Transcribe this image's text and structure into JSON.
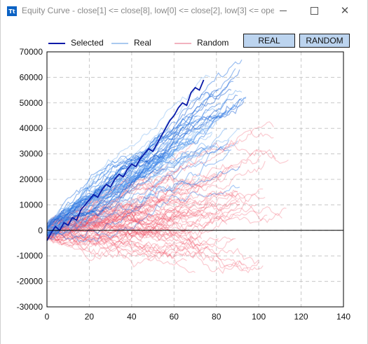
{
  "window": {
    "icon_text": "Tt",
    "title": "Equity Curve - close[1] <= close[8], low[0] <= close[2], low[3] <= ope...",
    "close_glyph": "✕"
  },
  "toolbar": {
    "real_label": "REAL",
    "random_label": "RANDOM"
  },
  "legend": {
    "items": [
      {
        "label": "Selected",
        "color": "#0a1aa8"
      },
      {
        "label": "Real",
        "color": "#a9c9ef"
      },
      {
        "label": "Random",
        "color": "#f2b3bf"
      }
    ]
  },
  "chart_data": {
    "type": "line",
    "title": "",
    "xlabel": "",
    "ylabel": "",
    "xlim": [
      0,
      140
    ],
    "ylim": [
      -30000,
      70000
    ],
    "x_ticks": [
      0,
      20,
      40,
      60,
      80,
      100,
      120,
      140
    ],
    "y_ticks": [
      -30000,
      -20000,
      -10000,
      0,
      10000,
      20000,
      30000,
      40000,
      50000,
      60000,
      70000
    ],
    "grid": true,
    "legend_position": "top-left",
    "colors": {
      "selected": "#0a1aa8",
      "real": "#1f6fe0",
      "random": "#f0485e",
      "zero_line": "#000000"
    },
    "series": [
      {
        "name": "Selected",
        "x": [
          0,
          2,
          4,
          6,
          8,
          10,
          12,
          14,
          16,
          18,
          20,
          22,
          24,
          26,
          28,
          30,
          32,
          34,
          36,
          38,
          40,
          42,
          44,
          46,
          48,
          50,
          52,
          54,
          56,
          58,
          60,
          62,
          64,
          66,
          68,
          70,
          72,
          74
        ],
        "values": [
          -4000,
          -1000,
          1500,
          0,
          3000,
          2000,
          5000,
          4000,
          8000,
          10000,
          12000,
          14000,
          13000,
          16000,
          18000,
          17000,
          20000,
          22000,
          21000,
          24000,
          26000,
          25000,
          28000,
          30000,
          32000,
          31000,
          34000,
          37000,
          40000,
          43000,
          45000,
          48000,
          50000,
          49000,
          54000,
          56000,
          55000,
          59000
        ]
      },
      {
        "name": "Real",
        "x": [
          0,
          10,
          20,
          30,
          40,
          50,
          60,
          70,
          80,
          90
        ],
        "values": [
          0,
          6000,
          12000,
          17000,
          22000,
          28000,
          33000,
          38000,
          44000,
          49000
        ]
      },
      {
        "name": "Random",
        "x": [
          0,
          10,
          20,
          30,
          40,
          50,
          60,
          70,
          80,
          90,
          100,
          110
        ],
        "values": [
          0,
          3000,
          6000,
          9000,
          11000,
          14000,
          16000,
          19000,
          21000,
          24000,
          27000,
          30000
        ]
      }
    ]
  }
}
